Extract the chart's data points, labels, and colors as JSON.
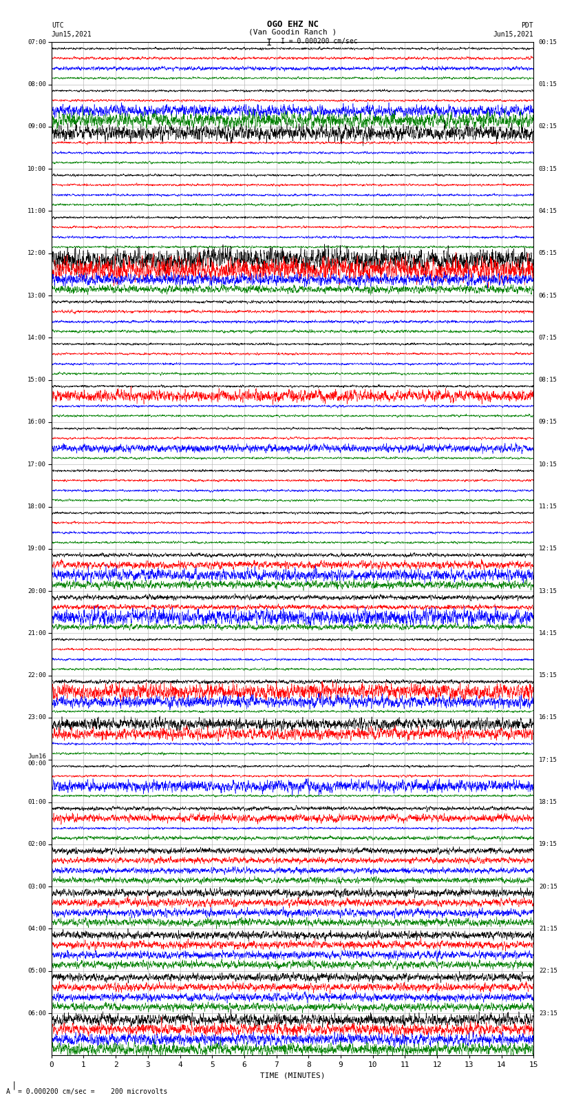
{
  "title_line1": "OGO EHZ NC",
  "title_line2": "(Van Goodin Ranch )",
  "scale_text": "I = 0.000200 cm/sec",
  "footer_text": "= 0.000200 cm/sec =    200 microvolts",
  "footer_scale_label": "A",
  "xlabel": "TIME (MINUTES)",
  "left_header": "UTC",
  "left_date": "Jun15,2021",
  "right_header": "PDT",
  "right_date": "Jun15,2021",
  "utc_times": [
    "07:00",
    "08:00",
    "09:00",
    "10:00",
    "11:00",
    "12:00",
    "13:00",
    "14:00",
    "15:00",
    "16:00",
    "17:00",
    "18:00",
    "19:00",
    "20:00",
    "21:00",
    "22:00",
    "23:00",
    "Jun16\n00:00",
    "01:00",
    "02:00",
    "03:00",
    "04:00",
    "05:00",
    "06:00"
  ],
  "pdt_times": [
    "00:15",
    "01:15",
    "02:15",
    "03:15",
    "04:15",
    "05:15",
    "06:15",
    "07:15",
    "08:15",
    "09:15",
    "10:15",
    "11:15",
    "12:15",
    "13:15",
    "14:15",
    "15:15",
    "16:15",
    "17:15",
    "18:15",
    "19:15",
    "20:15",
    "21:15",
    "22:15",
    "23:15"
  ],
  "num_rows": 24,
  "traces_per_row": 4,
  "trace_colors": [
    "black",
    "red",
    "blue",
    "green"
  ],
  "xmin": 0,
  "xmax": 15,
  "bg_color": "white",
  "grid_color": "#aaaaaa",
  "fig_width": 8.5,
  "fig_height": 16.13,
  "dpi": 100,
  "default_amp": 0.012,
  "row_amplitudes": {
    "0": [
      0.012,
      0.015,
      0.02,
      0.012
    ],
    "1": [
      0.012,
      0.012,
      0.06,
      0.08
    ],
    "2": [
      0.08,
      0.012,
      0.012,
      0.012
    ],
    "3": [
      0.012,
      0.012,
      0.012,
      0.012
    ],
    "4": [
      0.012,
      0.012,
      0.012,
      0.012
    ],
    "5": [
      0.12,
      0.12,
      0.06,
      0.04
    ],
    "6": [
      0.015,
      0.015,
      0.015,
      0.015
    ],
    "7": [
      0.012,
      0.012,
      0.012,
      0.012
    ],
    "8": [
      0.012,
      0.06,
      0.012,
      0.012
    ],
    "9": [
      0.012,
      0.012,
      0.04,
      0.012
    ],
    "10": [
      0.012,
      0.012,
      0.012,
      0.012
    ],
    "11": [
      0.012,
      0.012,
      0.012,
      0.012
    ],
    "12": [
      0.02,
      0.04,
      0.06,
      0.04
    ],
    "13": [
      0.025,
      0.025,
      0.08,
      0.03
    ],
    "14": [
      0.012,
      0.012,
      0.012,
      0.012
    ],
    "15": [
      0.02,
      0.08,
      0.06,
      0.012
    ],
    "16": [
      0.06,
      0.06,
      0.012,
      0.012
    ],
    "17": [
      0.012,
      0.012,
      0.06,
      0.012
    ],
    "18": [
      0.02,
      0.04,
      0.012,
      0.02
    ],
    "19": [
      0.03,
      0.03,
      0.03,
      0.03
    ],
    "20": [
      0.04,
      0.04,
      0.04,
      0.04
    ],
    "21": [
      0.04,
      0.04,
      0.04,
      0.04
    ],
    "22": [
      0.04,
      0.04,
      0.04,
      0.04
    ],
    "23": [
      0.06,
      0.06,
      0.06,
      0.06
    ]
  }
}
